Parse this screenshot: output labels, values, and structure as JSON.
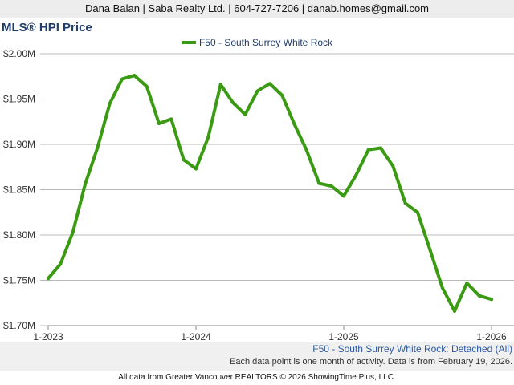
{
  "header": {
    "contact": "Dana Balan | Saba Realty Ltd. | 604-727-7206 | danab.homes@gmail.com"
  },
  "chart_title": "MLS® HPI Price",
  "legend": {
    "label": "F50 - South Surrey White Rock"
  },
  "footer": {
    "series_name": "F50 - South Surrey White Rock: Detached (All)",
    "note": "Each data point is one month of activity. Data is from February 19, 2026.",
    "copyright": "All data from Greater Vancouver REALTORS © 2026 ShowingTime Plus, LLC."
  },
  "chart_data": {
    "type": "line",
    "title": "MLS® HPI Price",
    "xlabel": "",
    "ylabel": "",
    "x_ticks": [
      "1-2023",
      "1-2024",
      "1-2025",
      "1-2026"
    ],
    "y_ticks": [
      "$1.70M",
      "$1.75M",
      "$1.80M",
      "$1.85M",
      "$1.90M",
      "$1.95M",
      "$2.00M"
    ],
    "ylim": [
      1700000,
      2000000
    ],
    "x": [
      "2023-01",
      "2023-02",
      "2023-03",
      "2023-04",
      "2023-05",
      "2023-06",
      "2023-07",
      "2023-08",
      "2023-09",
      "2023-10",
      "2023-11",
      "2023-12",
      "2024-01",
      "2024-02",
      "2024-03",
      "2024-04",
      "2024-05",
      "2024-06",
      "2024-07",
      "2024-08",
      "2024-09",
      "2024-10",
      "2024-11",
      "2024-12",
      "2025-01",
      "2025-02",
      "2025-03",
      "2025-04",
      "2025-05",
      "2025-06",
      "2025-07",
      "2025-08",
      "2025-09",
      "2025-10",
      "2025-11",
      "2025-12",
      "2026-01"
    ],
    "series": [
      {
        "name": "F50 - South Surrey White Rock",
        "color": "#3a9a12",
        "values": [
          1752000,
          1768000,
          1803000,
          1856000,
          1896000,
          1945000,
          1972000,
          1976000,
          1964000,
          1923000,
          1928000,
          1883000,
          1873000,
          1908000,
          1966000,
          1946000,
          1933000,
          1959000,
          1967000,
          1954000,
          1922000,
          1893000,
          1857000,
          1854000,
          1843000,
          1866000,
          1894000,
          1896000,
          1876000,
          1835000,
          1825000,
          1784000,
          1742000,
          1716000,
          1747000,
          1733000,
          1729000
        ]
      }
    ],
    "grid": true
  }
}
